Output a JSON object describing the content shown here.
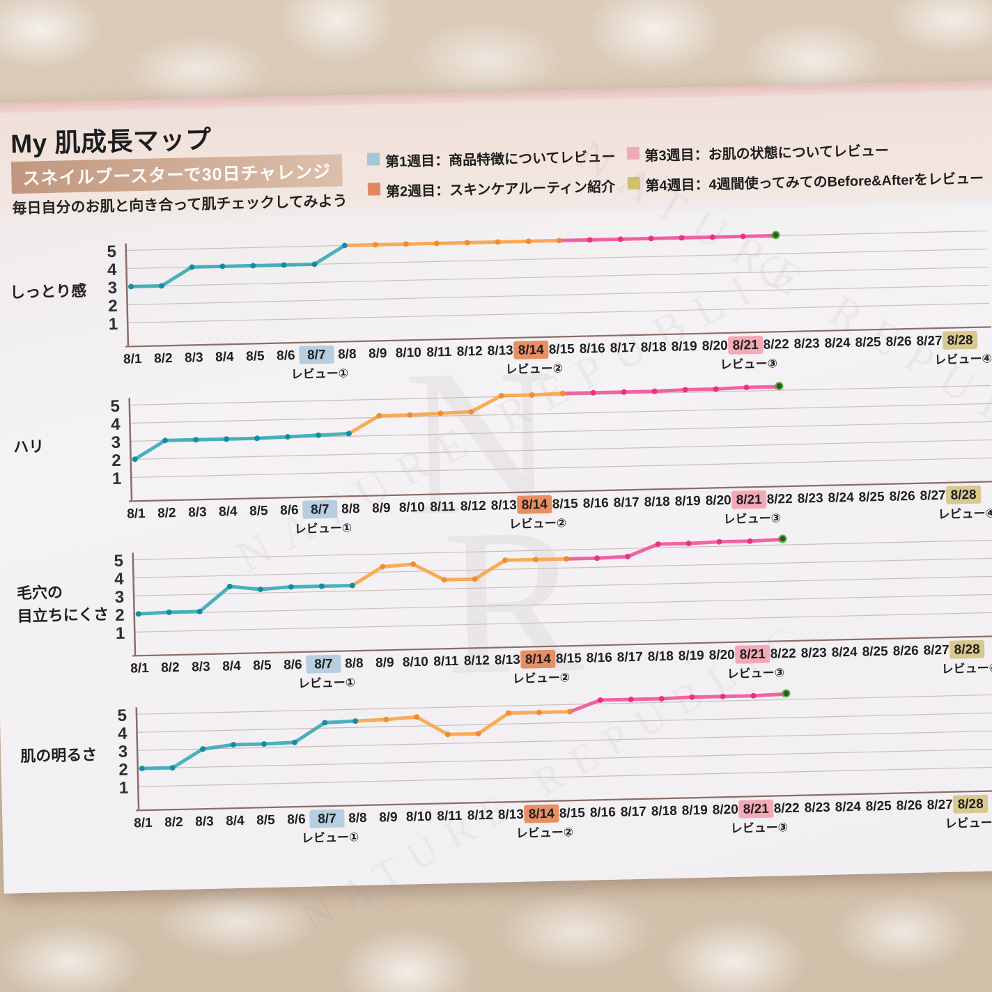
{
  "page": {
    "title": "My 肌成長マップ",
    "badge": "スネイルブースターで30日チャレンジ",
    "subtitle": "毎日自分のお肌と向き合って肌チェックしてみよう",
    "watermark_brand": "NATURE REPUBLIC",
    "monogram_top": "N",
    "monogram_bottom": "R"
  },
  "legend": {
    "items": [
      {
        "week": "第1週目",
        "label": "第1週目：商品特徴についてレビュー",
        "color": "#a9c4d7"
      },
      {
        "week": "第2週目",
        "label": "第2週目：スキンケアルーティン紹介",
        "color": "#e0875f"
      },
      {
        "week": "第3週目",
        "label": "第3週目：お肌の状態についてレビュー",
        "color": "#f0aab6"
      },
      {
        "week": "第4週目",
        "label": "第4週目：4週間使ってみてのBefore&Afterをレビュー",
        "color": "#d2c26e"
      }
    ]
  },
  "axis": {
    "dates": [
      "8/1",
      "8/2",
      "8/3",
      "8/4",
      "8/5",
      "8/6",
      "8/7",
      "8/8",
      "8/9",
      "8/10",
      "8/11",
      "8/12",
      "8/13",
      "8/14",
      "8/15",
      "8/16",
      "8/17",
      "8/18",
      "8/19",
      "8/20",
      "8/21",
      "8/22",
      "8/23",
      "8/24",
      "8/25",
      "8/26",
      "8/27",
      "8/28"
    ],
    "y_ticks": [
      5,
      4,
      3,
      2,
      1
    ],
    "reviews": [
      {
        "date": "8/7",
        "label": "レビュー①",
        "highlight": "#b6cedf"
      },
      {
        "date": "8/14",
        "label": "レビュー②",
        "highlight": "#e98e62"
      },
      {
        "date": "8/21",
        "label": "レビュー③",
        "highlight": "#f3aab6"
      },
      {
        "date": "8/28",
        "label": "レビュー④",
        "highlight": "#d9c88f"
      }
    ]
  },
  "chart_data": {
    "type": "line",
    "categories": [
      "8/1",
      "8/2",
      "8/3",
      "8/4",
      "8/5",
      "8/6",
      "8/7",
      "8/8",
      "8/9",
      "8/10",
      "8/11",
      "8/12",
      "8/13",
      "8/14",
      "8/15",
      "8/16",
      "8/17",
      "8/18",
      "8/19",
      "8/20",
      "8/21",
      "8/22",
      "8/23",
      "8/24",
      "8/25",
      "8/26",
      "8/27",
      "8/28"
    ],
    "data_recorded_through": "8/22",
    "ylim": [
      0,
      5.6
    ],
    "grid": true,
    "week_segments": [
      {
        "name": "week1",
        "color": "#35aab6",
        "dot": "#1089a2",
        "from": 0,
        "to": 7
      },
      {
        "name": "week2",
        "color": "#f9a347",
        "dot": "#f08a2d",
        "from": 7,
        "to": 14
      },
      {
        "name": "week3",
        "color": "#f2539a",
        "dot": "#e82d80",
        "from": 14,
        "to": 21
      }
    ],
    "end_dot": {
      "date": "8/22",
      "fill": "#2f5a1f",
      "stroke": "#5cb74b"
    },
    "charts": [
      {
        "id": "moisture",
        "title": "しっとり感",
        "title_lines": [
          "しっとり感"
        ],
        "values": [
          3,
          3,
          4,
          4,
          4,
          4,
          4,
          5,
          5,
          5,
          5,
          5,
          5,
          5,
          5,
          5,
          5,
          5,
          5,
          5,
          5,
          5
        ]
      },
      {
        "id": "firmness",
        "title": "ハリ",
        "title_lines": [
          "ハリ"
        ],
        "values": [
          2,
          3,
          3,
          3,
          3,
          3.05,
          3.1,
          3.15,
          4.1,
          4.1,
          4.15,
          4.2,
          5.05,
          5.05,
          5.1,
          5.1,
          5.1,
          5.1,
          5.15,
          5.15,
          5.2,
          5.2
        ]
      },
      {
        "id": "pores",
        "title": "毛穴の目立ちにくさ",
        "title_lines": [
          "毛穴の",
          "目立ちにくさ"
        ],
        "values": [
          2,
          2.05,
          2.05,
          3.4,
          3.2,
          3.3,
          3.3,
          3.3,
          4.3,
          4.4,
          3.5,
          3.5,
          4.5,
          4.5,
          4.5,
          4.5,
          4.55,
          5.2,
          5.2,
          5.25,
          5.25,
          5.3
        ]
      },
      {
        "id": "brightness",
        "title": "肌の明るさ",
        "title_lines": [
          "肌の明るさ"
        ],
        "values": [
          2,
          2,
          3,
          3.2,
          3.2,
          3.25,
          4.3,
          4.35,
          4.4,
          4.5,
          3.5,
          3.5,
          4.6,
          4.6,
          4.6,
          5.2,
          5.2,
          5.2,
          5.25,
          5.25,
          5.25,
          5.3
        ]
      }
    ]
  },
  "colors": {
    "paper": "#f2f0f2",
    "header_band": "#f0dfd9",
    "paper_top_edge": "#e5bfbc",
    "badge_bg": "#c2977f",
    "gridline": "#ccbeb8",
    "axis": "#8b6c66",
    "fabric": "#d5c2ac"
  }
}
